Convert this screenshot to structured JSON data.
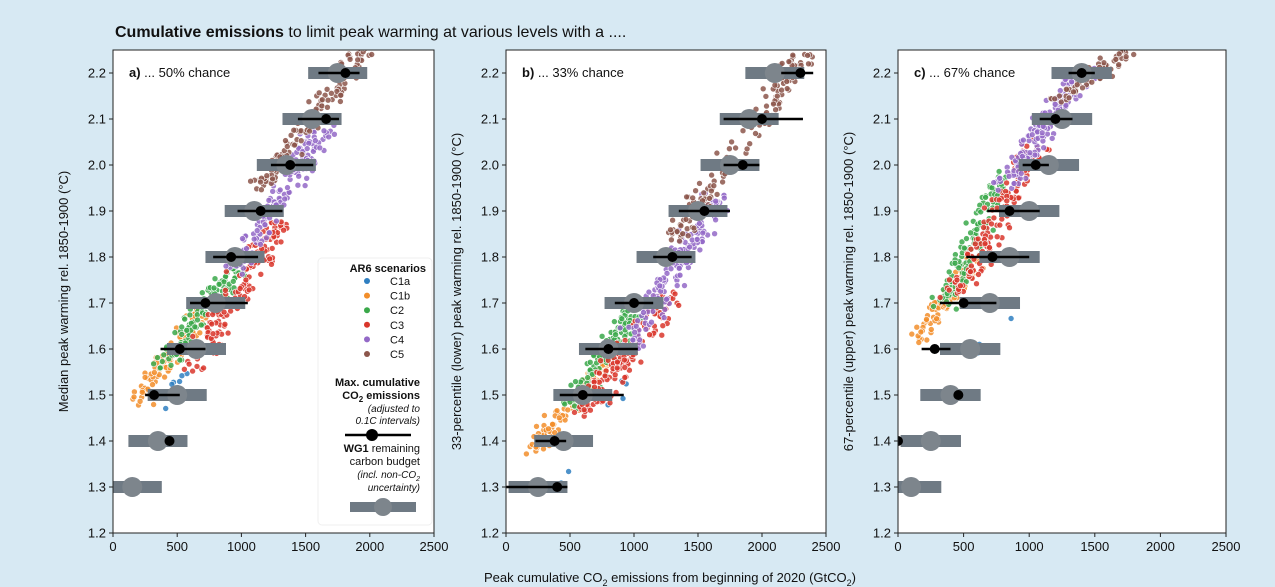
{
  "header": {
    "title_bold": "Cumulative emissions",
    "title_rest": " to limit peak warming at various levels with a ...."
  },
  "x_axis_label": {
    "pre": "Peak cumulative CO",
    "sub": "2",
    "post": " emissions from beginning of 2020 (GtCO",
    "sub2": "2",
    "close": ")"
  },
  "legend": {
    "title": "AR6 scenarios",
    "entries": [
      {
        "label": "C1a",
        "color": "#2f7fc1"
      },
      {
        "label": "C1b",
        "color": "#f28e2b"
      },
      {
        "label": "C2",
        "color": "#3aa84a"
      },
      {
        "label": "C3",
        "color": "#d9362b"
      },
      {
        "label": "C4",
        "color": "#9369c7"
      },
      {
        "label": "C5",
        "color": "#8c564b"
      }
    ],
    "max_title_1": "Max. cumulative",
    "max_title_2a": "CO",
    "max_title_2b": "2",
    "max_title_2c": " emissions",
    "max_note_1": "(adjusted to",
    "max_note_2": "0.1C intervals)",
    "wg1_bold": "WG1",
    "wg1_rest": " remaining",
    "wg1_line2": "carbon budget",
    "wg1_note_1a": "(incl. non-CO",
    "wg1_note_1b": "2",
    "wg1_note_2": "uncertainty)"
  },
  "colors": {
    "marker": "#000000",
    "budget": "#6f7a84",
    "budget_dot": "#7d858c"
  },
  "chart_data": [
    {
      "type": "scatter",
      "panel": "a",
      "title_bold": "a)",
      "title_rest": " ... 50% chance",
      "ylabel": "Median peak warming rel. 1850-1900 (°C)",
      "xlim": [
        0,
        2500
      ],
      "ylim": [
        1.2,
        2.25
      ],
      "xticks": [
        "0",
        "500",
        "1000",
        "1500",
        "2000",
        "2500"
      ],
      "yticks": [
        "1.2",
        "1.3",
        "1.4",
        "1.5",
        "1.6",
        "1.7",
        "1.8",
        "1.9",
        "2.0",
        "2.1",
        "2.2"
      ],
      "max_emissions": [
        {
          "y": 1.4,
          "x": 440,
          "low": 440,
          "high": 440
        },
        {
          "y": 1.5,
          "x": 320,
          "low": 250,
          "high": 520
        },
        {
          "y": 1.6,
          "x": 520,
          "low": 370,
          "high": 720
        },
        {
          "y": 1.7,
          "x": 720,
          "low": 600,
          "high": 1050
        },
        {
          "y": 1.8,
          "x": 920,
          "low": 780,
          "high": 1130
        },
        {
          "y": 1.9,
          "x": 1150,
          "low": 970,
          "high": 1320
        },
        {
          "y": 2.0,
          "x": 1380,
          "low": 1230,
          "high": 1560
        },
        {
          "y": 2.1,
          "x": 1660,
          "low": 1440,
          "high": 1760
        },
        {
          "y": 2.2,
          "x": 1810,
          "low": 1600,
          "high": 1920
        }
      ],
      "remaining_budget": [
        {
          "y": 1.3,
          "x": 150,
          "low": 0,
          "high": 380
        },
        {
          "y": 1.4,
          "x": 350,
          "low": 120,
          "high": 580
        },
        {
          "y": 1.5,
          "x": 500,
          "low": 270,
          "high": 730
        },
        {
          "y": 1.6,
          "x": 650,
          "low": 420,
          "high": 880
        },
        {
          "y": 1.7,
          "x": 800,
          "low": 570,
          "high": 1030
        },
        {
          "y": 1.8,
          "x": 950,
          "low": 720,
          "high": 1180
        },
        {
          "y": 1.9,
          "x": 1100,
          "low": 870,
          "high": 1330
        },
        {
          "y": 2.0,
          "x": 1350,
          "low": 1120,
          "high": 1580
        },
        {
          "y": 2.1,
          "x": 1550,
          "low": 1320,
          "high": 1780
        },
        {
          "y": 2.2,
          "x": 1750,
          "low": 1520,
          "high": 1980
        }
      ],
      "scatter_bands": [
        {
          "category": "C1a",
          "x0": 380,
          "y0": 1.47,
          "x1": 560,
          "y1": 1.56,
          "width": 120,
          "count": 8
        },
        {
          "category": "C1b",
          "x0": 200,
          "y0": 1.49,
          "x1": 700,
          "y1": 1.68,
          "width": 230,
          "count": 90
        },
        {
          "category": "C2",
          "x0": 420,
          "y0": 1.57,
          "x1": 1000,
          "y1": 1.79,
          "width": 260,
          "count": 120
        },
        {
          "category": "C3",
          "x0": 600,
          "y0": 1.56,
          "x1": 1300,
          "y1": 1.88,
          "width": 320,
          "count": 150
        },
        {
          "category": "C4",
          "x0": 900,
          "y0": 1.76,
          "x1": 1650,
          "y1": 2.08,
          "width": 260,
          "count": 150
        },
        {
          "category": "C5",
          "x0": 1150,
          "y0": 1.95,
          "x1": 1950,
          "y1": 2.25,
          "width": 260,
          "count": 140
        }
      ]
    },
    {
      "type": "scatter",
      "panel": "b",
      "title_bold": "b)",
      "title_rest": " ... 33% chance",
      "ylabel": "33-percentile (lower) peak warming rel. 1850-1900 (°C)",
      "xlim": [
        0,
        2500
      ],
      "ylim": [
        1.2,
        2.25
      ],
      "xticks": [
        "0",
        "500",
        "1000",
        "1500",
        "2000",
        "2500"
      ],
      "yticks": [
        "1.2",
        "1.3",
        "1.4",
        "1.5",
        "1.6",
        "1.7",
        "1.8",
        "1.9",
        "2.0",
        "2.1",
        "2.2"
      ],
      "max_emissions": [
        {
          "y": 1.3,
          "x": 400,
          "low": 0,
          "high": 480
        },
        {
          "y": 1.4,
          "x": 380,
          "low": 230,
          "high": 470
        },
        {
          "y": 1.5,
          "x": 600,
          "low": 420,
          "high": 920
        },
        {
          "y": 1.6,
          "x": 800,
          "low": 620,
          "high": 1030
        },
        {
          "y": 1.7,
          "x": 1000,
          "low": 850,
          "high": 1150
        },
        {
          "y": 1.8,
          "x": 1300,
          "low": 1150,
          "high": 1450
        },
        {
          "y": 1.9,
          "x": 1550,
          "low": 1350,
          "high": 1750
        },
        {
          "y": 2.0,
          "x": 1850,
          "low": 1700,
          "high": 1980
        },
        {
          "y": 2.1,
          "x": 2000,
          "low": 1700,
          "high": 2320
        },
        {
          "y": 2.2,
          "x": 2300,
          "low": 2150,
          "high": 2400
        }
      ],
      "remaining_budget": [
        {
          "y": 1.3,
          "x": 250,
          "low": 20,
          "high": 480
        },
        {
          "y": 1.4,
          "x": 450,
          "low": 220,
          "high": 680
        },
        {
          "y": 1.5,
          "x": 600,
          "low": 370,
          "high": 830
        },
        {
          "y": 1.6,
          "x": 800,
          "low": 570,
          "high": 1030
        },
        {
          "y": 1.7,
          "x": 1000,
          "low": 770,
          "high": 1230
        },
        {
          "y": 1.8,
          "x": 1250,
          "low": 1020,
          "high": 1480
        },
        {
          "y": 1.9,
          "x": 1500,
          "low": 1270,
          "high": 1730
        },
        {
          "y": 2.0,
          "x": 1750,
          "low": 1520,
          "high": 1980
        },
        {
          "y": 2.1,
          "x": 1900,
          "low": 1670,
          "high": 2130
        },
        {
          "y": 2.2,
          "x": 2100,
          "low": 1870,
          "high": 2330
        }
      ],
      "scatter_bands": [
        {
          "category": "C1a",
          "x0": 400,
          "y0": 1.3,
          "x1": 1000,
          "y1": 1.55,
          "width": 150,
          "count": 6
        },
        {
          "category": "C1b",
          "x0": 200,
          "y0": 1.38,
          "x1": 800,
          "y1": 1.58,
          "width": 230,
          "count": 100
        },
        {
          "category": "C2",
          "x0": 500,
          "y0": 1.48,
          "x1": 1000,
          "y1": 1.68,
          "width": 240,
          "count": 120
        },
        {
          "category": "C3",
          "x0": 600,
          "y0": 1.46,
          "x1": 1300,
          "y1": 1.72,
          "width": 330,
          "count": 150
        },
        {
          "category": "C4",
          "x0": 950,
          "y0": 1.6,
          "x1": 1650,
          "y1": 1.93,
          "width": 300,
          "count": 160
        },
        {
          "category": "C5",
          "x0": 1300,
          "y0": 1.84,
          "x1": 2350,
          "y1": 2.25,
          "width": 280,
          "count": 150
        }
      ]
    },
    {
      "type": "scatter",
      "panel": "c",
      "title_bold": "c)",
      "title_rest": " ... 67% chance",
      "ylabel": "67-percentile (upper) peak warming rel. 1850-1900 (°C)",
      "xlim": [
        0,
        2500
      ],
      "ylim": [
        1.2,
        2.25
      ],
      "xticks": [
        "0",
        "500",
        "1000",
        "1500",
        "2000",
        "2500"
      ],
      "yticks": [
        "1.2",
        "1.3",
        "1.4",
        "1.5",
        "1.6",
        "1.7",
        "1.8",
        "1.9",
        "2.0",
        "2.1",
        "2.2"
      ],
      "max_emissions": [
        {
          "y": 1.4,
          "x": 0,
          "low": 0,
          "high": 0
        },
        {
          "y": 1.5,
          "x": 460,
          "low": 460,
          "high": 460
        },
        {
          "y": 1.6,
          "x": 280,
          "low": 180,
          "high": 400
        },
        {
          "y": 1.7,
          "x": 500,
          "low": 320,
          "high": 750
        },
        {
          "y": 1.8,
          "x": 720,
          "low": 520,
          "high": 1000
        },
        {
          "y": 1.9,
          "x": 850,
          "low": 680,
          "high": 1080
        },
        {
          "y": 2.0,
          "x": 1050,
          "low": 950,
          "high": 1150
        },
        {
          "y": 2.1,
          "x": 1200,
          "low": 1080,
          "high": 1330
        },
        {
          "y": 2.2,
          "x": 1400,
          "low": 1300,
          "high": 1500
        }
      ],
      "remaining_budget": [
        {
          "y": 1.3,
          "x": 100,
          "low": 0,
          "high": 330
        },
        {
          "y": 1.4,
          "x": 250,
          "low": 20,
          "high": 480
        },
        {
          "y": 1.5,
          "x": 400,
          "low": 170,
          "high": 630
        },
        {
          "y": 1.6,
          "x": 550,
          "low": 320,
          "high": 780
        },
        {
          "y": 1.7,
          "x": 700,
          "low": 470,
          "high": 930
        },
        {
          "y": 1.8,
          "x": 850,
          "low": 620,
          "high": 1080
        },
        {
          "y": 1.9,
          "x": 1000,
          "low": 770,
          "high": 1230
        },
        {
          "y": 2.0,
          "x": 1150,
          "low": 920,
          "high": 1380
        },
        {
          "y": 2.1,
          "x": 1250,
          "low": 1020,
          "high": 1480
        },
        {
          "y": 2.2,
          "x": 1400,
          "low": 1170,
          "high": 1630
        }
      ],
      "scatter_bands": [
        {
          "category": "C1a",
          "x0": 600,
          "y0": 1.58,
          "x1": 900,
          "y1": 1.7,
          "width": 100,
          "count": 4
        },
        {
          "category": "C1b",
          "x0": 150,
          "y0": 1.62,
          "x1": 600,
          "y1": 1.8,
          "width": 200,
          "count": 90
        },
        {
          "category": "C2",
          "x0": 350,
          "y0": 1.7,
          "x1": 800,
          "y1": 1.98,
          "width": 220,
          "count": 120
        },
        {
          "category": "C3",
          "x0": 450,
          "y0": 1.72,
          "x1": 1050,
          "y1": 2.05,
          "width": 300,
          "count": 150
        },
        {
          "category": "C4",
          "x0": 800,
          "y0": 1.95,
          "x1": 1400,
          "y1": 2.2,
          "width": 260,
          "count": 160
        },
        {
          "category": "C5",
          "x0": 1200,
          "y0": 2.14,
          "x1": 1750,
          "y1": 2.25,
          "width": 230,
          "count": 60
        }
      ]
    }
  ]
}
